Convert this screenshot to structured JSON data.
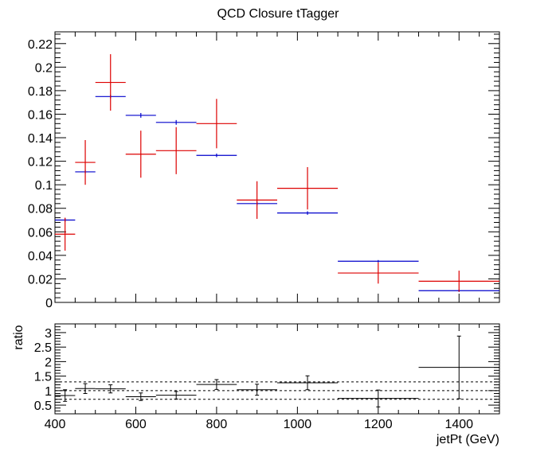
{
  "chart_data": [
    {
      "type": "scatter",
      "title": "QCD Closure tTagger",
      "xlabel": "",
      "ylabel": "",
      "xlim": [
        400,
        1500
      ],
      "ylim": [
        0,
        0.23
      ],
      "ytick_labels": [
        "0",
        "0.02",
        "0.04",
        "0.06",
        "0.08",
        "0.1",
        "0.12",
        "0.14",
        "0.16",
        "0.18",
        "0.2",
        "0.22"
      ],
      "series": [
        {
          "color": "#0000cc",
          "bins": [
            {
              "xlo": 400,
              "xhi": 450,
              "y": 0.07,
              "err": 0.0015
            },
            {
              "xlo": 450,
              "xhi": 500,
              "y": 0.111,
              "err": 0.0015
            },
            {
              "xlo": 500,
              "xhi": 575,
              "y": 0.175,
              "err": 0.0015
            },
            {
              "xlo": 575,
              "xhi": 650,
              "y": 0.159,
              "err": 0.002
            },
            {
              "xlo": 650,
              "xhi": 750,
              "y": 0.153,
              "err": 0.002
            },
            {
              "xlo": 750,
              "xhi": 850,
              "y": 0.125,
              "err": 0.0015
            },
            {
              "xlo": 850,
              "xhi": 950,
              "y": 0.084,
              "err": 0.0015
            },
            {
              "xlo": 950,
              "xhi": 1100,
              "y": 0.076,
              "err": 0.0015
            },
            {
              "xlo": 1100,
              "xhi": 1300,
              "y": 0.035,
              "err": 0.001
            },
            {
              "xlo": 1300,
              "xhi": 1500,
              "y": 0.01,
              "err": 0.001
            }
          ]
        },
        {
          "color": "#dd0000",
          "bins": [
            {
              "xlo": 400,
              "xhi": 450,
              "y": 0.058,
              "err": 0.014
            },
            {
              "xlo": 450,
              "xhi": 500,
              "y": 0.119,
              "err": 0.019
            },
            {
              "xlo": 500,
              "xhi": 575,
              "y": 0.187,
              "err": 0.024
            },
            {
              "xlo": 575,
              "xhi": 650,
              "y": 0.126,
              "err": 0.02
            },
            {
              "xlo": 650,
              "xhi": 750,
              "y": 0.129,
              "err": 0.02
            },
            {
              "xlo": 750,
              "xhi": 850,
              "y": 0.152,
              "err": 0.021
            },
            {
              "xlo": 850,
              "xhi": 950,
              "y": 0.087,
              "err": 0.016
            },
            {
              "xlo": 950,
              "xhi": 1100,
              "y": 0.097,
              "err": 0.018
            },
            {
              "xlo": 1100,
              "xhi": 1300,
              "y": 0.025,
              "err": 0.009
            },
            {
              "xlo": 1300,
              "xhi": 1500,
              "y": 0.018,
              "err": 0.009
            }
          ]
        }
      ]
    },
    {
      "type": "scatter",
      "xlabel": "jetPt (GeV)",
      "ylabel": "ratio",
      "xlim": [
        400,
        1500
      ],
      "ylim": [
        0.2,
        3.3
      ],
      "xtick_labels": [
        "400",
        "600",
        "800",
        "1000",
        "1200",
        "1400"
      ],
      "ytick_labels": [
        "0.5",
        "1",
        "1.5",
        "2",
        "2.5",
        "3"
      ],
      "reference_lines": [
        0.7,
        1.0,
        1.3
      ],
      "series": [
        {
          "color": "#000000",
          "bins": [
            {
              "xlo": 400,
              "xhi": 450,
              "y": 0.83,
              "err": 0.2
            },
            {
              "xlo": 450,
              "xhi": 500,
              "y": 1.07,
              "err": 0.17
            },
            {
              "xlo": 500,
              "xhi": 575,
              "y": 1.06,
              "err": 0.14
            },
            {
              "xlo": 575,
              "xhi": 650,
              "y": 0.79,
              "err": 0.13
            },
            {
              "xlo": 650,
              "xhi": 750,
              "y": 0.84,
              "err": 0.13
            },
            {
              "xlo": 750,
              "xhi": 850,
              "y": 1.21,
              "err": 0.17
            },
            {
              "xlo": 850,
              "xhi": 950,
              "y": 1.03,
              "err": 0.19
            },
            {
              "xlo": 950,
              "xhi": 1100,
              "y": 1.27,
              "err": 0.24
            },
            {
              "xlo": 1100,
              "xhi": 1300,
              "y": 0.73,
              "err": 0.29
            },
            {
              "xlo": 1300,
              "xhi": 1500,
              "y": 1.8,
              "err": 1.08
            }
          ]
        }
      ]
    }
  ]
}
